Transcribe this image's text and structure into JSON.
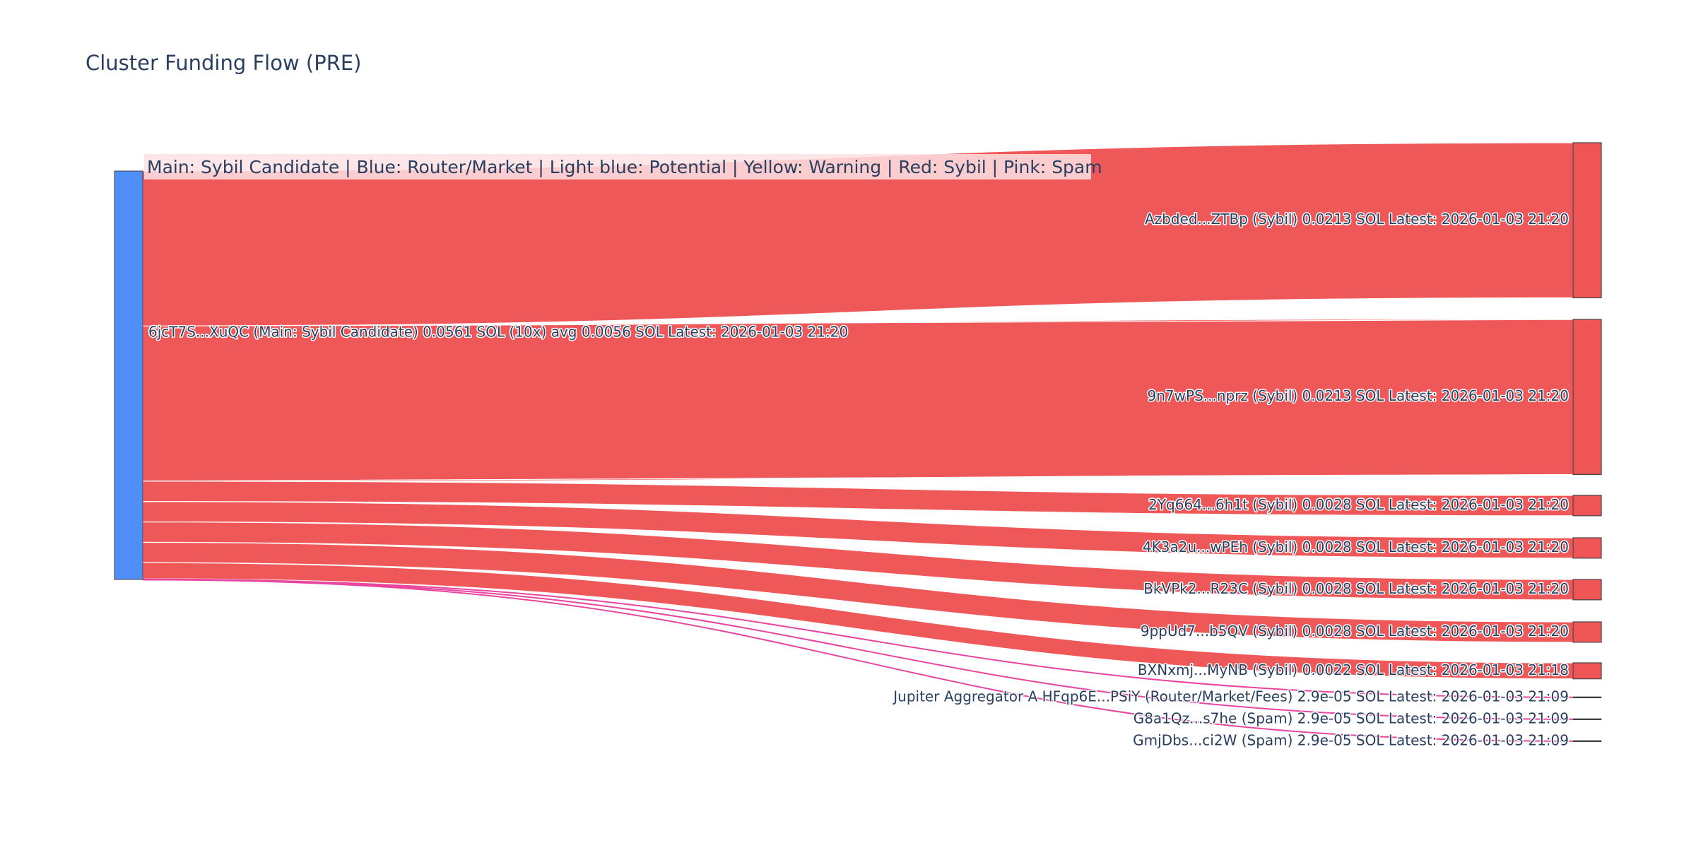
{
  "title": "Cluster Funding Flow (PRE)",
  "legend_text": "Main: Sybil Candidate  |  Blue: Router/Market | Light blue: Potential | Yellow: Warning | Red: Sybil | Pink: Spam",
  "colors": {
    "source_node": "#4f8ef7",
    "sybil_link": "#ef5555",
    "spam_link": "#e8459f",
    "target_node": "#ef5555",
    "node_border": "#444444",
    "legend_bg": "#fde2e4"
  },
  "chart_data": {
    "type": "sankey",
    "title": "Cluster Funding Flow (PRE)",
    "source": {
      "id": "main",
      "label": "6jcT7S...XuQC (Main: Sybil Candidate) 0.0561 SOL (10x) avg 0.0056 SOL Latest: 2026-01-03 21:20",
      "value": 0.0561
    },
    "targets": [
      {
        "id": "t1",
        "label": "Azbded...ZTBp (Sybil) 0.0213 SOL Latest: 2026-01-03 21:20",
        "value": 0.0213,
        "category": "sybil"
      },
      {
        "id": "t2",
        "label": "9n7wPS...nprz (Sybil) 0.0213 SOL Latest: 2026-01-03 21:20",
        "value": 0.0213,
        "category": "sybil"
      },
      {
        "id": "t3",
        "label": "2Yq664...6h1t (Sybil) 0.0028 SOL Latest: 2026-01-03 21:20",
        "value": 0.0028,
        "category": "sybil"
      },
      {
        "id": "t4",
        "label": "4K3a2u...wPEh (Sybil) 0.0028 SOL Latest: 2026-01-03 21:20",
        "value": 0.0028,
        "category": "sybil"
      },
      {
        "id": "t5",
        "label": "BkVPk2...R23C (Sybil) 0.0028 SOL Latest: 2026-01-03 21:20",
        "value": 0.0028,
        "category": "sybil"
      },
      {
        "id": "t6",
        "label": "9ppUd7...b5QV (Sybil) 0.0028 SOL Latest: 2026-01-03 21:20",
        "value": 0.0028,
        "category": "sybil"
      },
      {
        "id": "t7",
        "label": "BXNxmj...MyNB (Sybil) 0.0022 SOL Latest: 2026-01-03 21:18",
        "value": 0.0022,
        "category": "sybil"
      },
      {
        "id": "t8",
        "label": "Jupiter Aggregator A HFqp6E...PSiY (Router/Market/Fees) 2.9e-05 SOL Latest: 2026-01-03 21:09",
        "value": 2.9e-05,
        "category": "spam"
      },
      {
        "id": "t9",
        "label": "G8a1Qz...s7he (Spam) 2.9e-05 SOL Latest: 2026-01-03 21:09",
        "value": 2.9e-05,
        "category": "spam"
      },
      {
        "id": "t10",
        "label": "GmjDbs...ci2W (Spam) 2.9e-05 SOL Latest: 2026-01-03 21:09",
        "value": 2.9e-05,
        "category": "spam"
      }
    ]
  }
}
